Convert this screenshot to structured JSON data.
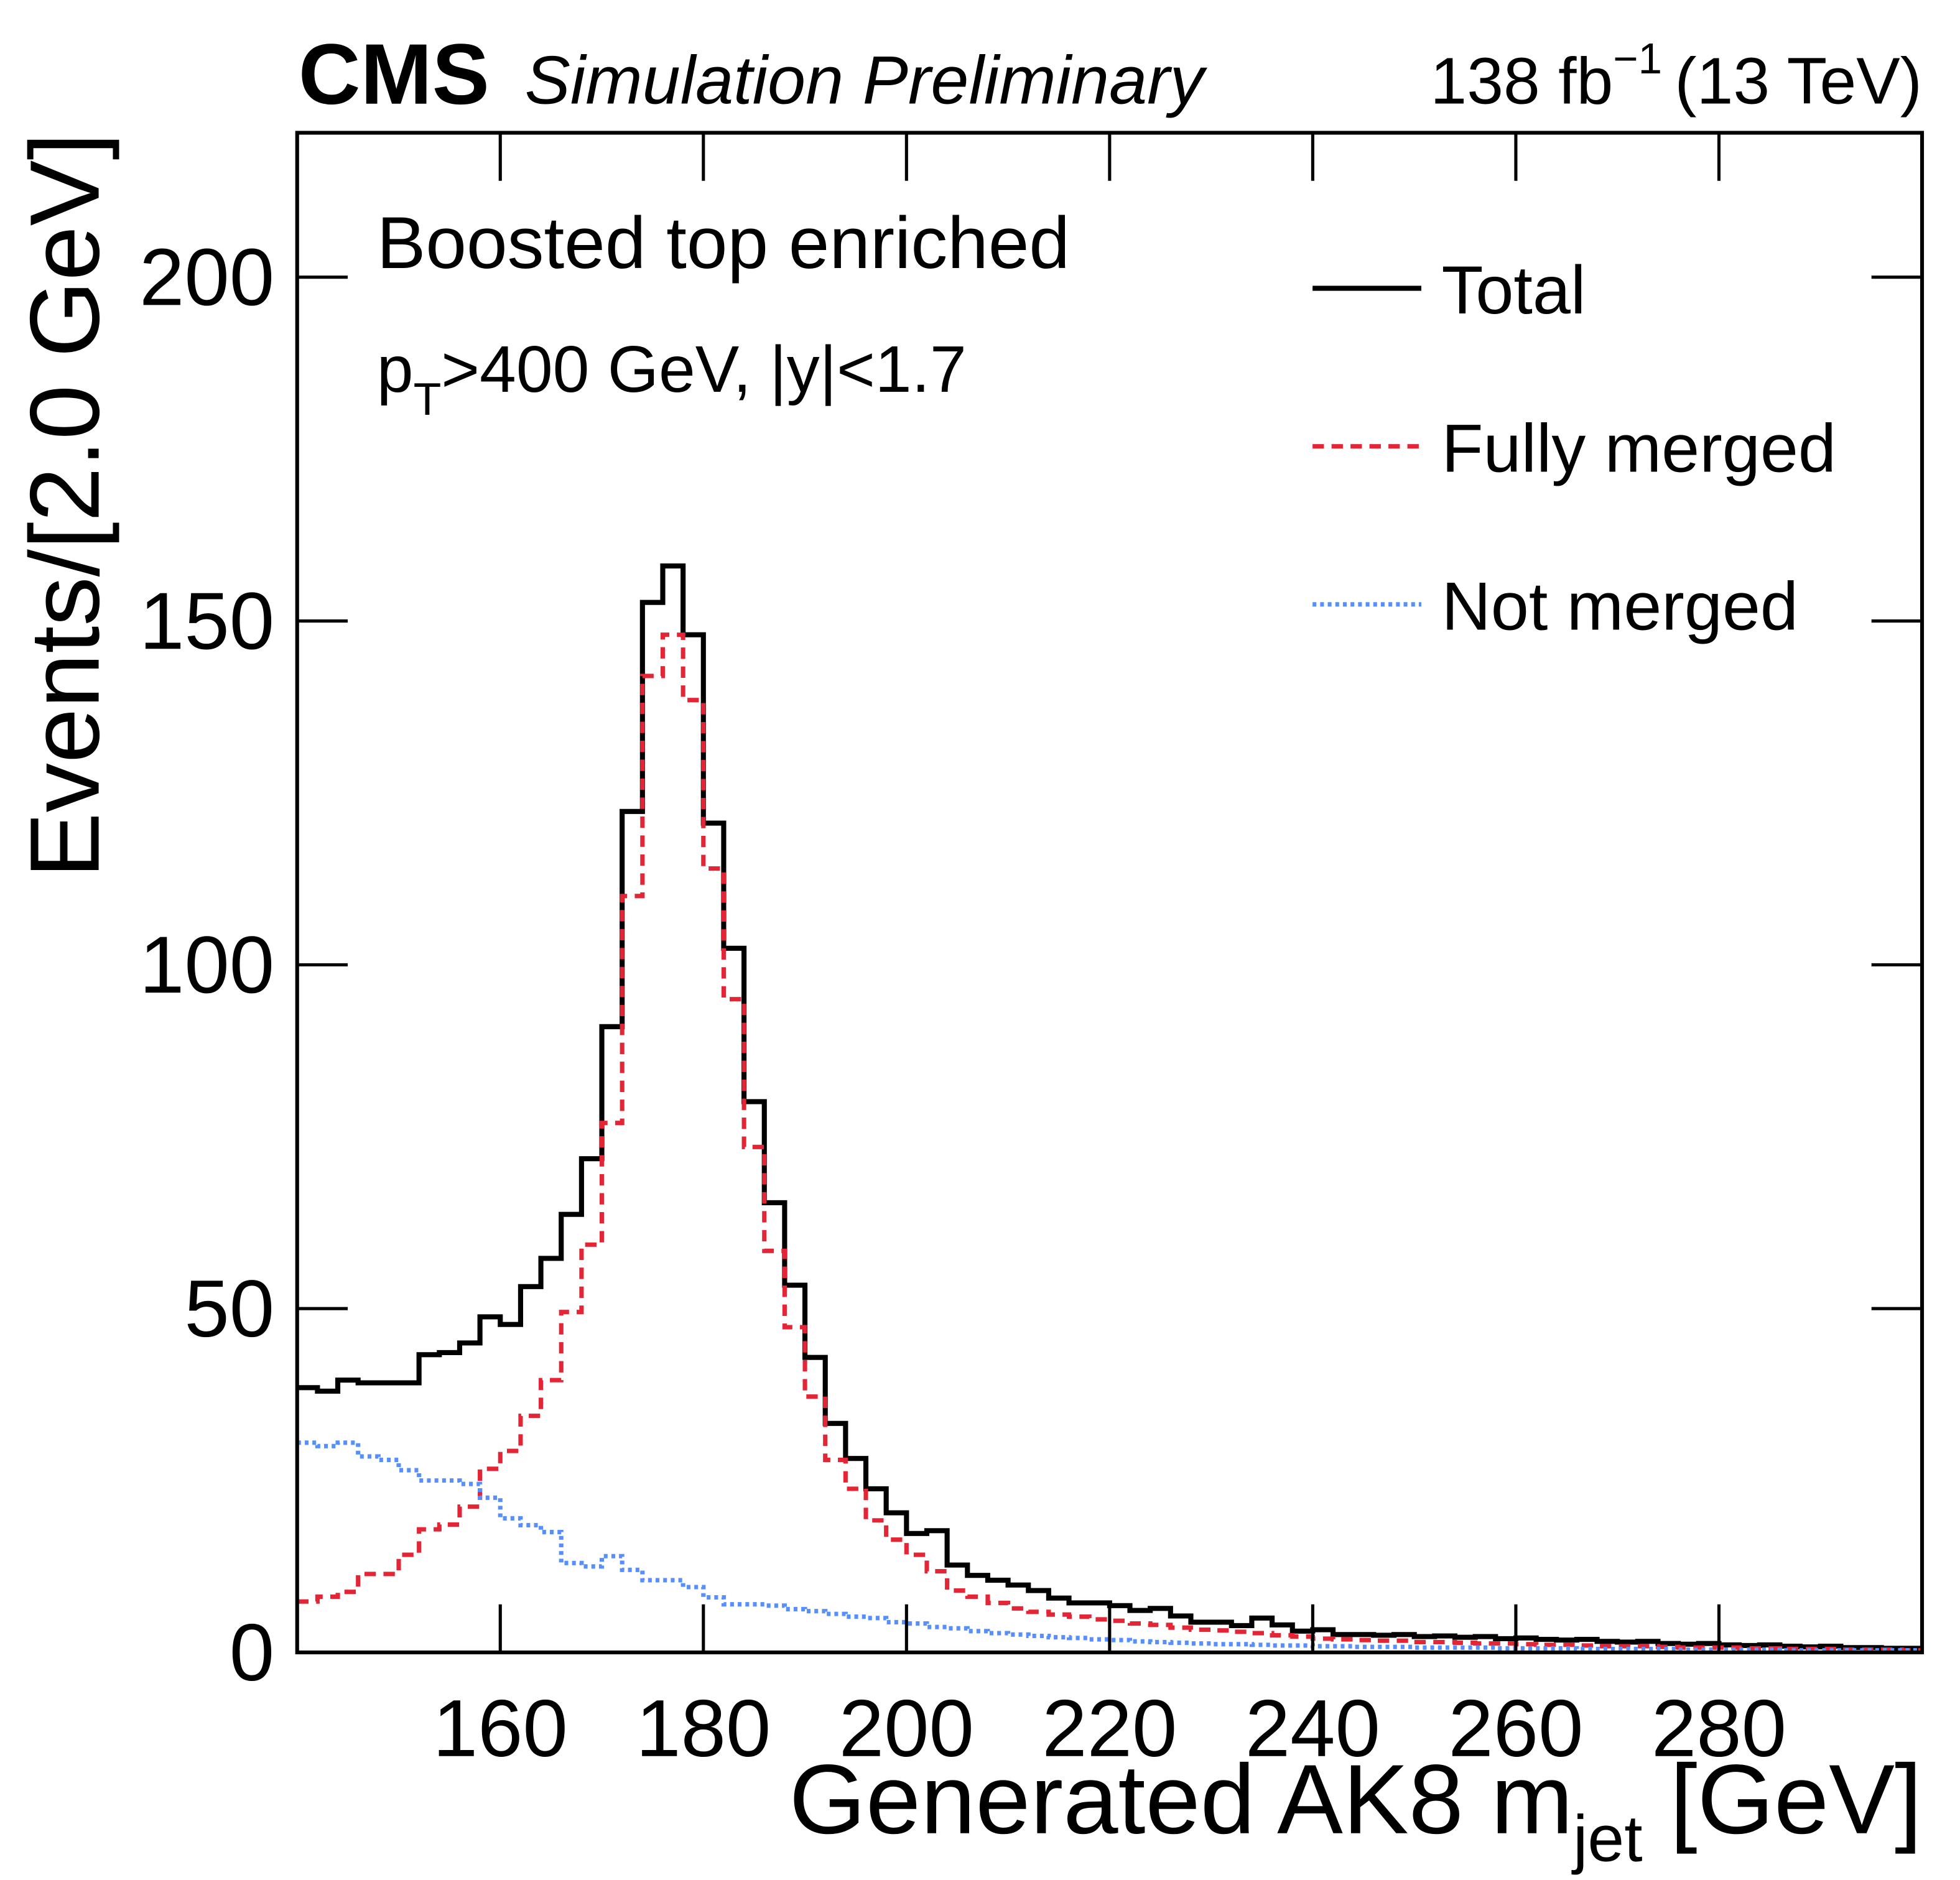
{
  "chart_data": {
    "type": "histogram",
    "experiment": "CMS",
    "subtitle": "Simulation Preliminary",
    "lumi": {
      "text": "138 fb",
      "sup": "−1",
      "energy": "(13 TeV)"
    },
    "annotations": [
      "Boosted top enriched",
      {
        "text": "p",
        "sub": "T",
        "rest": ">400 GeV, |y|<1.7"
      }
    ],
    "x_label": {
      "text": "Generated AK8 m",
      "sub": "jet",
      "rest": " [GeV]"
    },
    "y_label": "Events/[2.0 GeV]",
    "bins": [
      140,
      142,
      144,
      146,
      148,
      150,
      152,
      154,
      156,
      158,
      160,
      162,
      164,
      166,
      168,
      170,
      172,
      174,
      176,
      178,
      180,
      182,
      184,
      186,
      188,
      190,
      192,
      194,
      196,
      198,
      200,
      202,
      204,
      206,
      208,
      210,
      212,
      214,
      216,
      218,
      220,
      222,
      224,
      226,
      228,
      230,
      232,
      234,
      236,
      238,
      240,
      242,
      244,
      246,
      248,
      250,
      252,
      254,
      256,
      258,
      260,
      262,
      264,
      266,
      268,
      270,
      272,
      274,
      276,
      278,
      280,
      282,
      284,
      286,
      288,
      290,
      292,
      294,
      296,
      298,
      300
    ],
    "series": [
      {
        "name": "Total",
        "color": "#000000",
        "dash": "solid",
        "values": [
          38.5,
          38,
          39.6,
          39.2,
          39.2,
          39.2,
          43.3,
          43.6,
          45,
          48.8,
          47.7,
          53.2,
          57.3,
          63.7,
          71.8,
          91,
          122.3,
          152.7,
          158,
          148,
          120.6,
          102.4,
          80.1,
          65.4,
          53.4,
          42.9,
          33.3,
          28.2,
          23.8,
          20.3,
          17.3,
          17.7,
          12.7,
          11.2,
          10.5,
          9.8,
          9,
          7.9,
          7.2,
          7.2,
          6.8,
          6.1,
          6.4,
          5.3,
          4.4,
          4.4,
          3.9,
          5,
          4,
          3.1,
          3.3,
          2.6,
          2.6,
          2.5,
          2.6,
          2.3,
          2.4,
          2.2,
          2.3,
          2.0,
          2.1,
          1.9,
          1.8,
          1.9,
          1.6,
          1.5,
          1.6,
          1.3,
          1.2,
          1.3,
          1.1,
          1.0,
          1.1,
          0.9,
          0.8,
          0.9,
          0.7,
          0.7,
          0.6,
          0.6
        ]
      },
      {
        "name": "Fully merged",
        "color": "#e42536",
        "dash": "dashed",
        "values": [
          7.4,
          8.1,
          8.8,
          11.4,
          11.4,
          14.2,
          17.9,
          18.6,
          21.2,
          26.7,
          29.3,
          34.4,
          39.6,
          49.5,
          59.3,
          77,
          110,
          142,
          148,
          138.5,
          114,
          95,
          73.5,
          58.4,
          47.3,
          37.2,
          28,
          23.8,
          19.2,
          16.4,
          14.2,
          11.8,
          9,
          8.1,
          7.2,
          6.4,
          5.9,
          5.5,
          5.2,
          4.8,
          4.6,
          4.2,
          4.0,
          3.6,
          3.3,
          3.2,
          3.0,
          2.8,
          2.5,
          2.3,
          2.0,
          1.9,
          1.8,
          1.7,
          1.7,
          1.5,
          1.5,
          1.4,
          1.3,
          1.3,
          1.2,
          1.1,
          1.1,
          1.0,
          0.9,
          0.9,
          0.9,
          0.8,
          0.7,
          0.7,
          0.7,
          0.6,
          0.6,
          0.5,
          0.5,
          0.5,
          0.4,
          0.4,
          0.4,
          0.3
        ]
      },
      {
        "name": "Not merged",
        "color": "#5790fc",
        "dash": "dotted",
        "values": [
          30.5,
          30,
          30.5,
          28.5,
          28,
          26.5,
          25,
          25,
          24.5,
          22.5,
          19.5,
          18.5,
          17.5,
          13,
          12.5,
          14,
          12,
          10.5,
          10.5,
          9.5,
          8,
          7,
          7,
          6.8,
          6.3,
          6,
          5.6,
          5.2,
          5,
          4.4,
          4.2,
          3.7,
          3.5,
          3.1,
          2.8,
          2.6,
          2.4,
          2.2,
          2.1,
          1.9,
          1.8,
          1.6,
          1.5,
          1.4,
          1.3,
          1.2,
          1.2,
          1.1,
          1.0,
          1.0,
          0.9,
          0.9,
          0.8,
          0.8,
          0.8,
          0.7,
          0.7,
          0.7,
          0.7,
          0.6,
          0.6,
          0.6,
          0.6,
          0.5,
          0.5,
          0.5,
          0.5,
          0.5,
          0.4,
          0.4,
          0.4,
          0.4,
          0.4,
          0.3,
          0.3,
          0.3,
          0.3,
          0.3,
          0.3,
          0.3
        ]
      }
    ],
    "xlim": [
      140,
      300
    ],
    "ylim": [
      0,
      221
    ],
    "xticks": [
      160,
      180,
      200,
      220,
      240,
      260,
      280
    ],
    "yticks": [
      0,
      50,
      100,
      150,
      200
    ],
    "legend": "upper right",
    "grid": false
  }
}
